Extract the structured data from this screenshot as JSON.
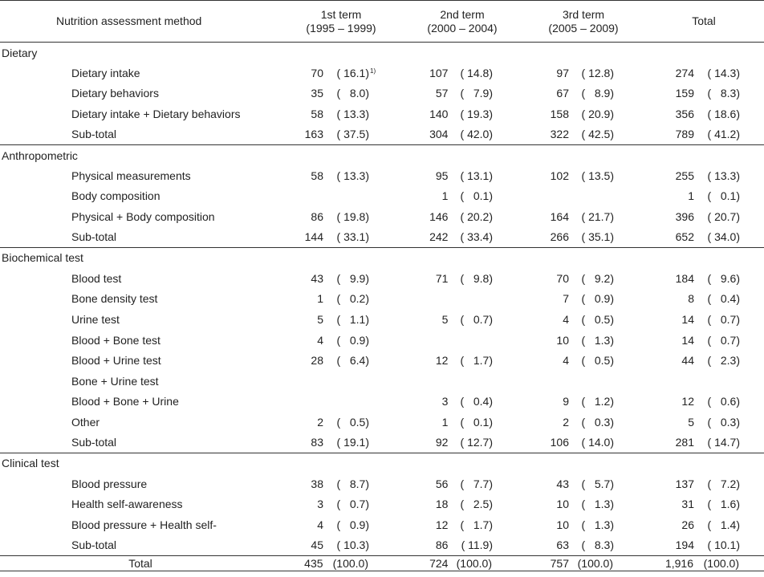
{
  "header": {
    "method": "Nutrition assessment method",
    "terms": [
      {
        "name": "1st term",
        "years": "(1995 – 1999)"
      },
      {
        "name": "2nd term",
        "years": "(2000 – 2004)"
      },
      {
        "name": "3rd term",
        "years": "(2005 – 2009)"
      },
      {
        "name": "Total",
        "years": ""
      }
    ]
  },
  "sections": [
    {
      "name": "Dietary",
      "rows": [
        {
          "label": "Dietary intake",
          "cells": [
            [
              "70",
              "( 16.1)",
              "1)"
            ],
            [
              "107",
              "( 14.8)"
            ],
            [
              "97",
              "( 12.8)"
            ],
            [
              "274",
              "( 14.3)"
            ]
          ]
        },
        {
          "label": "Dietary behaviors",
          "cells": [
            [
              "35",
              "(   8.0)"
            ],
            [
              "57",
              "(   7.9)"
            ],
            [
              "67",
              "(   8.9)"
            ],
            [
              "159",
              "(   8.3)"
            ]
          ]
        },
        {
          "label": "Dietary intake + Dietary behaviors",
          "cells": [
            [
              "58",
              "( 13.3)"
            ],
            [
              "140",
              "( 19.3)"
            ],
            [
              "158",
              "( 20.9)"
            ],
            [
              "356",
              "( 18.6)"
            ]
          ]
        },
        {
          "label": "Sub-total",
          "cells": [
            [
              "163",
              "( 37.5)"
            ],
            [
              "304",
              "( 42.0)"
            ],
            [
              "322",
              "( 42.5)"
            ],
            [
              "789",
              "( 41.2)"
            ]
          ]
        }
      ]
    },
    {
      "name": "Anthropometric",
      "rows": [
        {
          "label": "Physical measurements",
          "cells": [
            [
              "58",
              "( 13.3)"
            ],
            [
              "95",
              "( 13.1)"
            ],
            [
              "102",
              "( 13.5)"
            ],
            [
              "255",
              "( 13.3)"
            ]
          ]
        },
        {
          "label": "Body composition",
          "cells": [
            [
              "",
              ""
            ],
            [
              "1",
              "(   0.1)"
            ],
            [
              "",
              ""
            ],
            [
              "1",
              "(   0.1)"
            ]
          ]
        },
        {
          "label": "Physical + Body composition",
          "cells": [
            [
              "86",
              "( 19.8)"
            ],
            [
              "146",
              "( 20.2)"
            ],
            [
              "164",
              "( 21.7)"
            ],
            [
              "396",
              "( 20.7)"
            ]
          ]
        },
        {
          "label": "Sub-total",
          "cells": [
            [
              "144",
              "( 33.1)"
            ],
            [
              "242",
              "( 33.4)"
            ],
            [
              "266",
              "( 35.1)"
            ],
            [
              "652",
              "( 34.0)"
            ]
          ]
        }
      ]
    },
    {
      "name": "Biochemical test",
      "rows": [
        {
          "label": "Blood test",
          "cells": [
            [
              "43",
              "(   9.9)"
            ],
            [
              "71",
              "(   9.8)"
            ],
            [
              "70",
              "(   9.2)"
            ],
            [
              "184",
              "(   9.6)"
            ]
          ]
        },
        {
          "label": "Bone density test",
          "cells": [
            [
              "1",
              "(   0.2)"
            ],
            [
              "",
              ""
            ],
            [
              "7",
              "(   0.9)"
            ],
            [
              "8",
              "(   0.4)"
            ]
          ]
        },
        {
          "label": "Urine test",
          "cells": [
            [
              "5",
              "(   1.1)"
            ],
            [
              "5",
              "(   0.7)"
            ],
            [
              "4",
              "(   0.5)"
            ],
            [
              "14",
              "(   0.7)"
            ]
          ]
        },
        {
          "label": "Blood + Bone test",
          "cells": [
            [
              "4",
              "(   0.9)"
            ],
            [
              "",
              ""
            ],
            [
              "10",
              "(   1.3)"
            ],
            [
              "14",
              "(   0.7)"
            ]
          ]
        },
        {
          "label": "Blood + Urine test",
          "cells": [
            [
              "28",
              "(   6.4)"
            ],
            [
              "12",
              "(   1.7)"
            ],
            [
              "4",
              "(   0.5)"
            ],
            [
              "44",
              "(   2.3)"
            ]
          ]
        },
        {
          "label": "Bone + Urine test",
          "cells": [
            [
              "",
              ""
            ],
            [
              "",
              ""
            ],
            [
              "",
              ""
            ],
            [
              "",
              ""
            ]
          ]
        },
        {
          "label": "Blood + Bone + Urine",
          "cells": [
            [
              "",
              ""
            ],
            [
              "3",
              "(   0.4)"
            ],
            [
              "9",
              "(   1.2)"
            ],
            [
              "12",
              "(   0.6)"
            ]
          ]
        },
        {
          "label": "Other",
          "cells": [
            [
              "2",
              "(   0.5)"
            ],
            [
              "1",
              "(   0.1)"
            ],
            [
              "2",
              "(   0.3)"
            ],
            [
              "5",
              "(   0.3)"
            ]
          ]
        },
        {
          "label": "Sub-total",
          "cells": [
            [
              "83",
              "( 19.1)"
            ],
            [
              "92",
              "( 12.7)"
            ],
            [
              "106",
              "( 14.0)"
            ],
            [
              "281",
              "( 14.7)"
            ]
          ]
        }
      ]
    },
    {
      "name": "Clinical test",
      "rows": [
        {
          "label": "Blood pressure",
          "cells": [
            [
              "38",
              "(   8.7)"
            ],
            [
              "56",
              "(   7.7)"
            ],
            [
              "43",
              "(   5.7)"
            ],
            [
              "137",
              "(   7.2)"
            ]
          ]
        },
        {
          "label": "Health self-awareness",
          "cells": [
            [
              "3",
              "(   0.7)"
            ],
            [
              "18",
              "(   2.5)"
            ],
            [
              "10",
              "(   1.3)"
            ],
            [
              "31",
              "(   1.6)"
            ]
          ]
        },
        {
          "label": "Blood pressure + Health self-",
          "cells": [
            [
              "4",
              "(   0.9)"
            ],
            [
              "12",
              "(   1.7)"
            ],
            [
              "10",
              "(   1.3)"
            ],
            [
              "26",
              "(   1.4)"
            ]
          ]
        },
        {
          "label": "Sub-total",
          "cells": [
            [
              "45",
              "( 10.3)"
            ],
            [
              "86",
              "( 11.9)"
            ],
            [
              "63",
              "(   8.3)"
            ],
            [
              "194",
              "( 10.1)"
            ]
          ]
        }
      ]
    }
  ],
  "footer": {
    "label": "Total",
    "cells": [
      [
        "435",
        "(100.0)"
      ],
      [
        "724",
        "(100.0)"
      ],
      [
        "757",
        "(100.0)"
      ],
      [
        "1,916",
        "(100.0)"
      ]
    ]
  }
}
